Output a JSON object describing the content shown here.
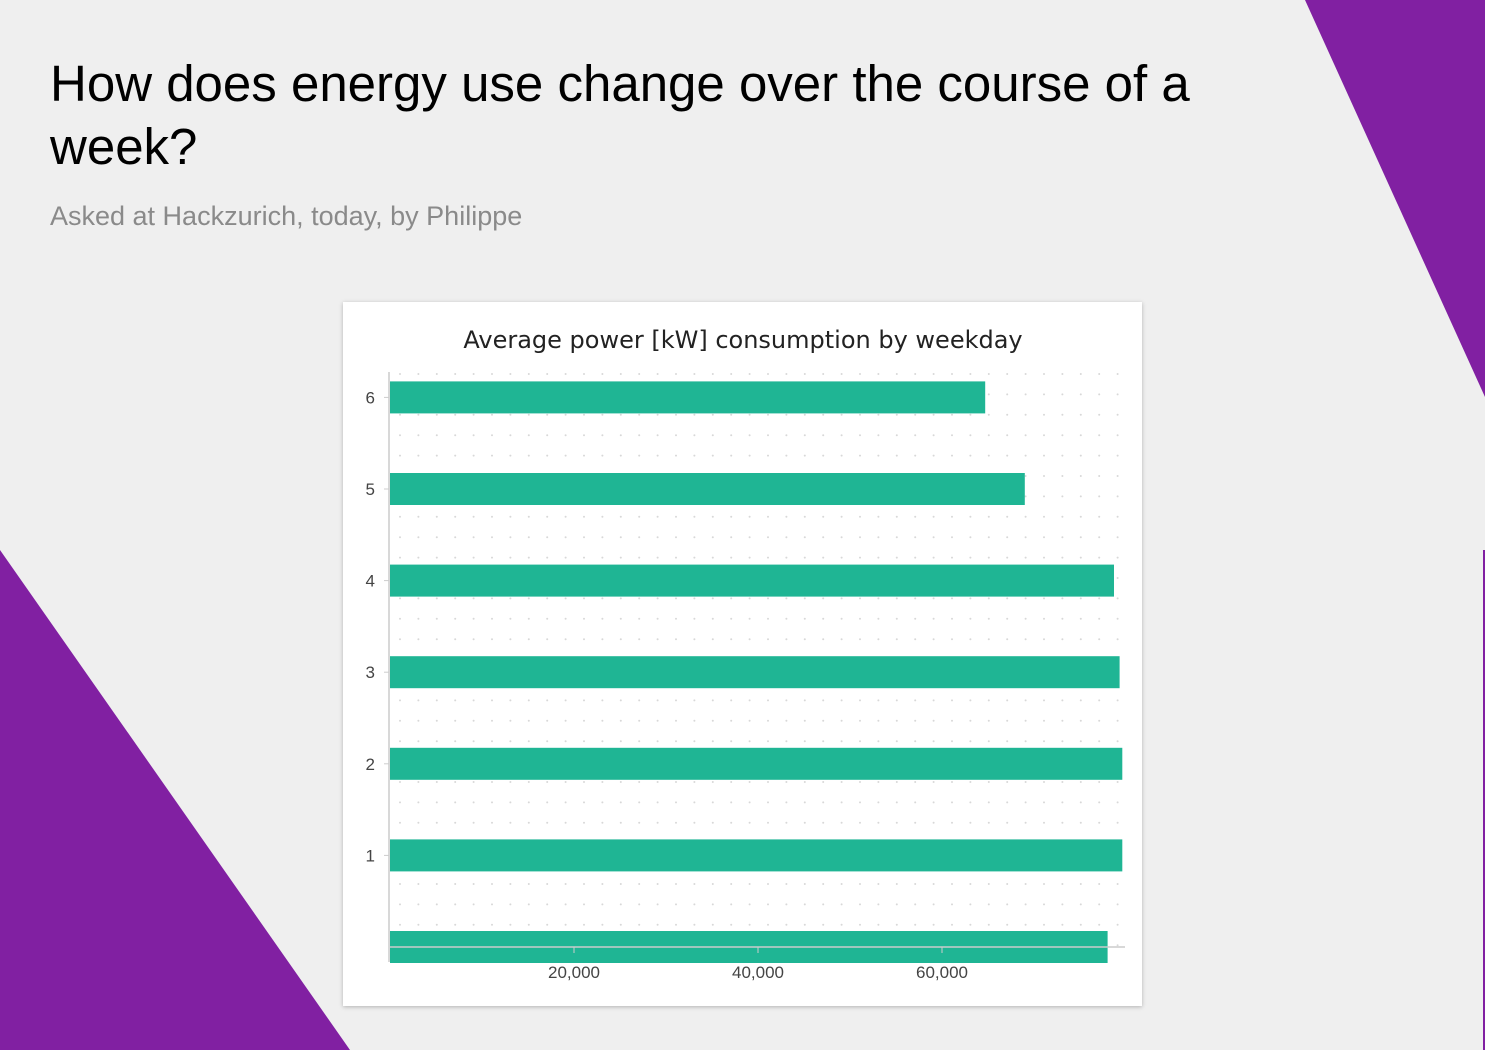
{
  "page": {
    "title": "How does energy use change over the course of a week?",
    "subtitle": "Asked at Hackzurich, today, by Philippe"
  },
  "colors": {
    "background": "#efefef",
    "accent": "#8120a2",
    "bar": "#1fb594",
    "grid_dot": "#d8d8d8",
    "axis": "#cccccc"
  },
  "chart_data": {
    "type": "bar",
    "orientation": "horizontal",
    "title": "Average power [kW] consumption by weekday",
    "xlabel": "",
    "ylabel": "",
    "categories": [
      "0",
      "1",
      "2",
      "3",
      "4",
      "5",
      "6"
    ],
    "category_tick_labels": [
      "",
      "1",
      "2",
      "3",
      "4",
      "5",
      "6"
    ],
    "values": [
      78000,
      79600,
      79600,
      79300,
      78700,
      69000,
      64700
    ],
    "xlim": [
      0,
      80000
    ],
    "x_ticks": [
      20000,
      40000,
      60000
    ],
    "x_tick_labels": [
      "20,000",
      "40,000",
      "60,000"
    ],
    "grid": "dotted",
    "legend": "none"
  }
}
